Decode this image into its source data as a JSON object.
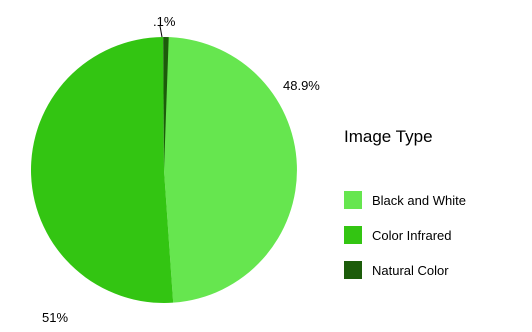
{
  "chart_data": {
    "type": "pie",
    "categories": [
      "Black and White",
      "Color Infrared",
      "Natural Color"
    ],
    "values": [
      48.9,
      51,
      0.1
    ],
    "value_labels": [
      "48.9%",
      "51%",
      ".1%"
    ],
    "colors": [
      "#66e64f",
      "#33c512",
      "#1c5c0a"
    ],
    "legend_title": "Image Type",
    "legend_position": "right",
    "start_angle": "12 o'clock, clockwise"
  }
}
